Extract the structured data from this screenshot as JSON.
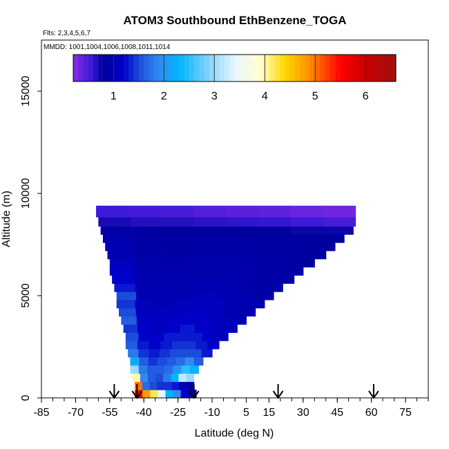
{
  "chart_data": {
    "type": "heatmap",
    "title": "ATOM3 Southbound EthBenzene_TOGA",
    "flights_label": "Flts: 2,3,4,5,6,7",
    "mmdd_label": "MMDD: 1001,1004,1006,1008,1011,1014",
    "xlabel": "Latitude (deg N)",
    "ylabel": "Altitude (m)",
    "xlim": [
      -85,
      85
    ],
    "ylim": [
      0,
      17500
    ],
    "x_ticks": [
      -85,
      -70,
      -55,
      -40,
      -25,
      -10,
      5,
      15,
      30,
      45,
      60,
      75
    ],
    "x_tick_labels": [
      "-85",
      "-70",
      "-55",
      "-40",
      "-25",
      "-10",
      "5",
      "15",
      "30",
      "45",
      "60",
      "75"
    ],
    "y_ticks": [
      0,
      5000,
      10000,
      15000
    ],
    "y_tick_labels": [
      "0",
      "5000",
      "10000",
      "15000"
    ],
    "colorbar": {
      "range": [
        0.2,
        6.6
      ],
      "ticks": [
        1,
        2,
        3,
        4,
        5,
        6
      ],
      "tick_labels": [
        "1",
        "2",
        "3",
        "4",
        "5",
        "6"
      ],
      "stops": [
        {
          "v": 0.2,
          "c": "#8a2be2"
        },
        {
          "v": 0.55,
          "c": "#3d1ad8"
        },
        {
          "v": 0.8,
          "c": "#00009c"
        },
        {
          "v": 1.2,
          "c": "#0000c8"
        },
        {
          "v": 1.5,
          "c": "#1c4cdc"
        },
        {
          "v": 1.9,
          "c": "#2f8bef"
        },
        {
          "v": 2.3,
          "c": "#00b4ff"
        },
        {
          "v": 2.9,
          "c": "#86d3ff"
        },
        {
          "v": 3.4,
          "c": "#e6f6ff"
        },
        {
          "v": 3.9,
          "c": "#ffffd0"
        },
        {
          "v": 4.4,
          "c": "#ffd700"
        },
        {
          "v": 4.9,
          "c": "#ff8c00"
        },
        {
          "v": 5.5,
          "c": "#ff0000"
        },
        {
          "v": 6.0,
          "c": "#c80000"
        },
        {
          "v": 6.6,
          "c": "#a01010"
        }
      ]
    },
    "flight_arrows_lat": [
      -53,
      -43,
      -18,
      19,
      61
    ],
    "profile_rows": [
      {
        "z": 200,
        "lat_min": -44,
        "lat_max": -17,
        "values": [
          5.6,
          4.8,
          4.2,
          3.4,
          2.3,
          1.9,
          1.2,
          1.0
        ]
      },
      {
        "z": 600,
        "lat_min": -44,
        "lat_max": -18,
        "values": [
          5.0,
          1.7,
          1.5,
          1.4,
          1.4,
          1.3,
          1.1,
          0.9
        ]
      },
      {
        "z": 1000,
        "lat_min": -45,
        "lat_max": -18,
        "values": [
          4.0,
          1.9,
          1.6,
          1.5,
          1.8,
          2.3,
          3.2,
          3.0
        ]
      },
      {
        "z": 1400,
        "lat_min": -46,
        "lat_max": -16,
        "values": [
          3.0,
          1.8,
          1.6,
          1.6,
          1.7,
          2.0,
          2.5,
          2.3
        ]
      },
      {
        "z": 1800,
        "lat_min": -46,
        "lat_max": -14,
        "values": [
          2.2,
          1.6,
          1.4,
          1.5,
          1.6,
          1.7,
          1.9,
          1.6
        ]
      },
      {
        "z": 2200,
        "lat_min": -47,
        "lat_max": -10,
        "values": [
          1.8,
          1.4,
          1.3,
          1.4,
          1.5,
          1.5,
          1.5,
          1.3
        ]
      },
      {
        "z": 2600,
        "lat_min": -48,
        "lat_max": -7,
        "values": [
          1.6,
          1.3,
          1.2,
          1.3,
          1.4,
          1.4,
          1.3,
          1.2
        ]
      },
      {
        "z": 3000,
        "lat_min": -48,
        "lat_max": -3,
        "values": [
          1.5,
          1.2,
          1.2,
          1.3,
          1.3,
          1.3,
          1.2,
          1.1
        ]
      },
      {
        "z": 3400,
        "lat_min": -49,
        "lat_max": 1,
        "values": [
          1.4,
          1.2,
          1.1,
          1.2,
          1.3,
          1.2,
          1.1,
          1.1
        ]
      },
      {
        "z": 3800,
        "lat_min": -50,
        "lat_max": 5,
        "values": [
          1.6,
          1.2,
          1.1,
          1.2,
          1.2,
          1.2,
          1.1,
          1.0
        ]
      },
      {
        "z": 4200,
        "lat_min": -51,
        "lat_max": 9,
        "values": [
          1.5,
          1.1,
          1.1,
          1.1,
          1.2,
          1.1,
          1.0,
          1.0
        ]
      },
      {
        "z": 4600,
        "lat_min": -52,
        "lat_max": 13,
        "values": [
          1.4,
          1.1,
          1.0,
          1.1,
          1.1,
          1.1,
          1.0,
          1.0
        ]
      },
      {
        "z": 5000,
        "lat_min": -52,
        "lat_max": 17,
        "values": [
          1.5,
          1.0,
          1.0,
          1.0,
          1.1,
          1.0,
          1.0,
          0.9
        ]
      },
      {
        "z": 5400,
        "lat_min": -53,
        "lat_max": 21,
        "values": [
          1.3,
          1.0,
          1.0,
          1.0,
          1.0,
          1.0,
          0.9,
          0.9
        ]
      },
      {
        "z": 5800,
        "lat_min": -54,
        "lat_max": 26,
        "values": [
          1.2,
          1.0,
          0.95,
          1.0,
          1.0,
          0.95,
          0.9,
          0.9
        ]
      },
      {
        "z": 6200,
        "lat_min": -55,
        "lat_max": 30,
        "values": [
          1.2,
          0.95,
          0.95,
          0.95,
          0.95,
          0.95,
          0.9,
          0.9
        ]
      },
      {
        "z": 6600,
        "lat_min": -55,
        "lat_max": 35,
        "values": [
          1.1,
          0.95,
          0.9,
          0.95,
          0.95,
          0.9,
          0.9,
          0.85
        ]
      },
      {
        "z": 7000,
        "lat_min": -56,
        "lat_max": 40,
        "values": [
          1.0,
          0.9,
          0.9,
          0.9,
          0.9,
          0.9,
          0.85,
          0.85
        ]
      },
      {
        "z": 7400,
        "lat_min": -57,
        "lat_max": 44,
        "values": [
          1.0,
          0.9,
          0.85,
          0.9,
          0.9,
          0.85,
          0.85,
          0.8
        ]
      },
      {
        "z": 7800,
        "lat_min": -58,
        "lat_max": 48,
        "values": [
          0.95,
          0.85,
          0.85,
          0.85,
          0.85,
          0.85,
          0.8,
          0.8
        ]
      },
      {
        "z": 8200,
        "lat_min": -59,
        "lat_max": 52,
        "values": [
          0.9,
          0.85,
          0.8,
          0.8,
          0.8,
          0.8,
          0.75,
          0.75
        ]
      },
      {
        "z": 8600,
        "lat_min": -60,
        "lat_max": 53,
        "values": [
          0.7,
          0.65,
          0.65,
          0.62,
          0.6,
          0.58,
          0.55,
          0.5
        ]
      },
      {
        "z": 9100,
        "lat_min": -61,
        "lat_max": 53,
        "values": [
          0.55,
          0.52,
          0.5,
          0.45,
          0.42,
          0.4,
          0.35,
          0.32
        ]
      }
    ]
  }
}
